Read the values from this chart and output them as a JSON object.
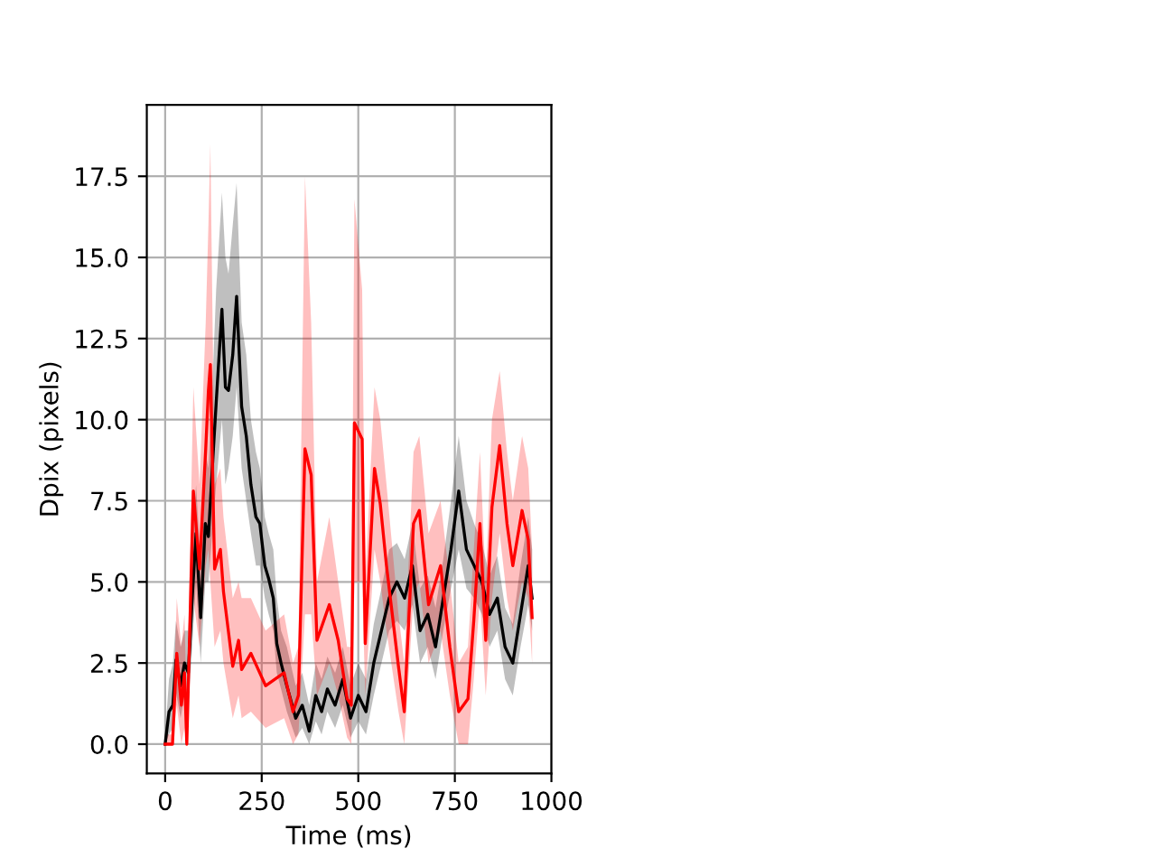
{
  "chart_data": {
    "type": "line",
    "xlabel": "Time (ms)",
    "ylabel": "Dpix (pixels)",
    "xlim": [
      -47.5,
      1000
    ],
    "xticks": [
      0,
      250,
      500,
      750,
      1000
    ],
    "ylim": [
      -0.9,
      19.7
    ],
    "yticks": [
      {
        "value": 0,
        "label": "0.0"
      },
      2.5,
      {
        "value": 5,
        "label": "5.0"
      },
      7.5,
      {
        "value": 10,
        "label": "10.0"
      },
      12.5,
      {
        "value": 15,
        "label": "15.0"
      },
      17.5
    ],
    "grid": true,
    "series": [
      {
        "color": "#000000",
        "x": [
          0,
          10,
          20,
          28,
          40,
          50,
          60,
          70,
          80,
          92,
          104,
          112,
          122,
          132,
          147,
          156,
          164,
          175,
          185,
          198,
          210,
          222,
          235,
          245,
          258,
          268,
          280,
          289,
          300,
          315,
          338,
          355,
          373,
          390,
          405,
          420,
          440,
          460,
          480,
          500,
          520,
          540,
          560,
          580,
          600,
          620,
          640,
          660,
          680,
          700,
          720,
          740,
          760,
          780,
          800,
          820,
          840,
          860,
          880,
          900,
          920,
          940,
          950
        ],
        "values": [
          0,
          1.0,
          1.2,
          2.6,
          1.8,
          2.5,
          2.2,
          4.5,
          6.5,
          3.9,
          6.8,
          6.4,
          8.5,
          10.5,
          13.4,
          11.0,
          10.9,
          12.0,
          13.8,
          10.4,
          9.5,
          8.0,
          7.0,
          6.8,
          5.5,
          5.1,
          4.5,
          3.1,
          2.5,
          1.8,
          0.8,
          1.2,
          0.4,
          1.5,
          1.0,
          1.7,
          1.2,
          2.0,
          0.8,
          1.5,
          1.0,
          2.5,
          3.5,
          4.5,
          5.0,
          4.5,
          5.5,
          3.5,
          4.0,
          3.0,
          4.5,
          6.0,
          7.8,
          6.0,
          5.5,
          5.0,
          4.0,
          4.5,
          3.0,
          2.5,
          4.0,
          5.5,
          4.5
        ],
        "upper": [
          0.3,
          2,
          2.5,
          3.8,
          3,
          3.5,
          3.5,
          6,
          8,
          5.5,
          9,
          8.5,
          11,
          14,
          17,
          15,
          14.5,
          16,
          17.3,
          13,
          12,
          10,
          9,
          8.5,
          7,
          6.5,
          6,
          4.5,
          3.5,
          3,
          1.8,
          2.2,
          1.2,
          2.5,
          2,
          2.7,
          2.2,
          3,
          1.8,
          2.5,
          2,
          3.7,
          4.8,
          6,
          6.2,
          5.7,
          6.8,
          4.8,
          5.2,
          4.2,
          5.7,
          7.5,
          9.5,
          7.5,
          6.8,
          6.2,
          5.2,
          5.8,
          4.2,
          3.7,
          5.5,
          7,
          6
        ],
        "lower": [
          0,
          0.3,
          0.5,
          1.6,
          0.8,
          1.5,
          1.2,
          3,
          5,
          2.5,
          5,
          5,
          6.5,
          8,
          10,
          8,
          8.5,
          9.5,
          11,
          8.5,
          7.5,
          6.5,
          5.5,
          5.5,
          4.5,
          4,
          3.5,
          2.2,
          1.7,
          1,
          0.2,
          0.5,
          0,
          0.7,
          0.3,
          1,
          0.5,
          1.2,
          0.2,
          0.7,
          0.3,
          1.5,
          2.5,
          3.5,
          3.8,
          3.5,
          4.3,
          2.5,
          3,
          2,
          3.5,
          4.8,
          6,
          4.8,
          4.5,
          4,
          3,
          3.5,
          2,
          1.5,
          3,
          4.3,
          3.5
        ]
      },
      {
        "color": "#ff0000",
        "x": [
          0,
          19,
          30,
          42,
          50,
          56,
          73,
          89,
          105,
          112,
          117,
          128,
          143,
          151,
          175,
          190,
          198,
          222,
          260,
          308,
          331,
          345,
          362,
          378,
          393,
          425,
          448,
          471,
          482,
          490,
          510,
          518,
          542,
          557,
          573,
          604,
          619,
          643,
          658,
          682,
          713,
          737,
          760,
          784,
          799,
          815,
          830,
          846,
          866,
          885,
          900,
          924,
          940,
          950
        ],
        "values": [
          0,
          0,
          2.8,
          1.2,
          2.2,
          0,
          7.8,
          5.4,
          9.1,
          10.9,
          11.7,
          5.4,
          6.0,
          4.7,
          2.4,
          3.2,
          2.3,
          2.8,
          1.8,
          2.2,
          1.0,
          1.5,
          9.1,
          8.3,
          3.2,
          4.3,
          3.2,
          1.4,
          1.2,
          9.9,
          9.4,
          3.1,
          8.5,
          7.4,
          5.5,
          2.4,
          1.0,
          6.8,
          7.2,
          4.3,
          5.5,
          3.0,
          1.0,
          1.4,
          3.8,
          6.8,
          3.2,
          7.3,
          9.2,
          6.8,
          5.5,
          7.2,
          6.3,
          3.9
        ],
        "upper": [
          0.3,
          0.3,
          4.5,
          3,
          4,
          1,
          11,
          8,
          13,
          16,
          18.5,
          8,
          8.5,
          7,
          4.5,
          5,
          4.5,
          4.5,
          3.5,
          4,
          2.5,
          3,
          17.5,
          13,
          5,
          7,
          5,
          3,
          3,
          16.8,
          14,
          5,
          11,
          10,
          8,
          4,
          2.5,
          9,
          9.5,
          6.5,
          7.5,
          5,
          2.5,
          3,
          6,
          9,
          5,
          10,
          11.5,
          9,
          7.5,
          9.5,
          8.5,
          6
        ],
        "lower": [
          0,
          0,
          1.2,
          0,
          0.5,
          0,
          4.5,
          3,
          5.5,
          6,
          5,
          3,
          3.5,
          2.5,
          0.8,
          1.5,
          0.8,
          1,
          0.5,
          0.8,
          0,
          0.3,
          4,
          4,
          1.5,
          2.5,
          1.5,
          0.2,
          0,
          5,
          5,
          1.5,
          6,
          5,
          3.5,
          1,
          0,
          4.5,
          5,
          2.5,
          3.5,
          1.5,
          0,
          0,
          2,
          4.5,
          1.5,
          4.5,
          6.5,
          4.5,
          3.5,
          5,
          4.5,
          2.5
        ]
      }
    ]
  }
}
